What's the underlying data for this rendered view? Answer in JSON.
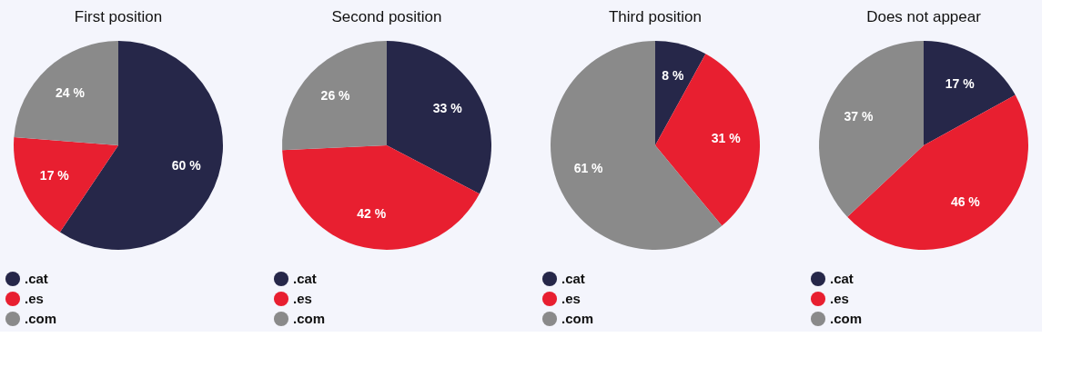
{
  "chart_data": [
    {
      "type": "pie",
      "title": "First position",
      "categories": [
        ".cat",
        ".es",
        ".com"
      ],
      "values": [
        60,
        17,
        24
      ],
      "value_labels": [
        "60 %",
        "17 %",
        "24 %"
      ],
      "colors": [
        "#262749",
        "#e81f30",
        "#8a8a8a"
      ],
      "legend": "bottom"
    },
    {
      "type": "pie",
      "title": "Second position",
      "categories": [
        ".cat",
        ".es",
        ".com"
      ],
      "values": [
        33,
        42,
        26
      ],
      "value_labels": [
        "33 %",
        "42 %",
        "26 %"
      ],
      "colors": [
        "#262749",
        "#e81f30",
        "#8a8a8a"
      ],
      "legend": "bottom"
    },
    {
      "type": "pie",
      "title": "Third position",
      "categories": [
        ".cat",
        ".es",
        ".com"
      ],
      "values": [
        8,
        31,
        61
      ],
      "value_labels": [
        "8 %",
        "31 %",
        "61 %"
      ],
      "colors": [
        "#262749",
        "#e81f30",
        "#8a8a8a"
      ],
      "legend": "bottom"
    },
    {
      "type": "pie",
      "title": "Does not appear",
      "categories": [
        ".cat",
        ".es",
        ".com"
      ],
      "values": [
        17,
        46,
        37
      ],
      "value_labels": [
        "17 %",
        "46 %",
        "37 %"
      ],
      "colors": [
        "#262749",
        "#e81f30",
        "#8a8a8a"
      ],
      "legend": "bottom"
    }
  ]
}
